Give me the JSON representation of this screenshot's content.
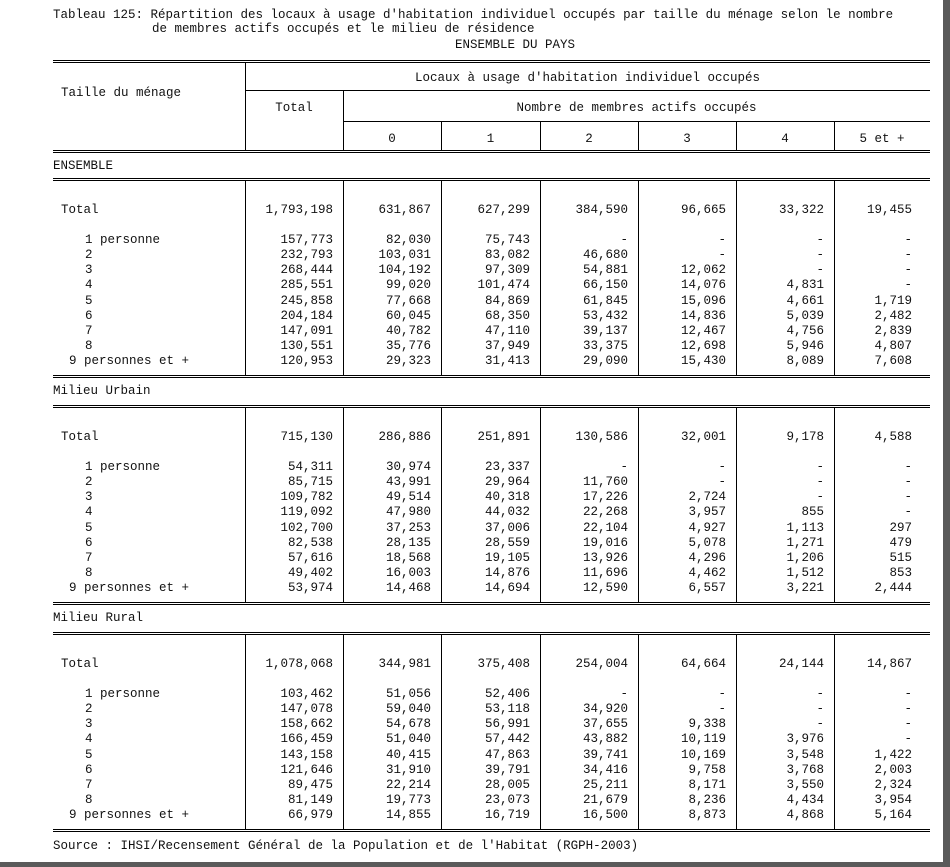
{
  "title": {
    "line1": "Tableau 125: Répartition des locaux à usage d'habitation individuel occupés par taille du ménage selon le nombre",
    "line2": "de membres actifs occupés et le milieu de résidence",
    "scope": "ENSEMBLE DU PAYS"
  },
  "header": {
    "row_label": "Taille du ménage",
    "group": "Locaux à usage d'habitation individuel occupés",
    "total": "Total",
    "subgroup": "Nombre de membres actifs occupés",
    "columns": [
      "0",
      "1",
      "2",
      "3",
      "4",
      "5 et +"
    ]
  },
  "sections": [
    {
      "name": "ENSEMBLE",
      "total": {
        "label": "Total",
        "values": [
          "1,793,198",
          "631,867",
          "627,299",
          "384,590",
          "96,665",
          "33,322",
          "19,455"
        ]
      },
      "rows": [
        {
          "label": "1 personne",
          "values": [
            "157,773",
            "82,030",
            "75,743",
            "-",
            "-",
            "-",
            "-"
          ]
        },
        {
          "label": "2",
          "values": [
            "232,793",
            "103,031",
            "83,082",
            "46,680",
            "-",
            "-",
            "-"
          ]
        },
        {
          "label": "3",
          "values": [
            "268,444",
            "104,192",
            "97,309",
            "54,881",
            "12,062",
            "-",
            "-"
          ]
        },
        {
          "label": "4",
          "values": [
            "285,551",
            "99,020",
            "101,474",
            "66,150",
            "14,076",
            "4,831",
            "-"
          ]
        },
        {
          "label": "5",
          "values": [
            "245,858",
            "77,668",
            "84,869",
            "61,845",
            "15,096",
            "4,661",
            "1,719"
          ]
        },
        {
          "label": "6",
          "values": [
            "204,184",
            "60,045",
            "68,350",
            "53,432",
            "14,836",
            "5,039",
            "2,482"
          ]
        },
        {
          "label": "7",
          "values": [
            "147,091",
            "40,782",
            "47,110",
            "39,137",
            "12,467",
            "4,756",
            "2,839"
          ]
        },
        {
          "label": "8",
          "values": [
            "130,551",
            "35,776",
            "37,949",
            "33,375",
            "12,698",
            "5,946",
            "4,807"
          ]
        },
        {
          "label": "9 personnes et +",
          "values": [
            "120,953",
            "29,323",
            "31,413",
            "29,090",
            "15,430",
            "8,089",
            "7,608"
          ]
        }
      ]
    },
    {
      "name": "Milieu Urbain",
      "total": {
        "label": "Total",
        "values": [
          "715,130",
          "286,886",
          "251,891",
          "130,586",
          "32,001",
          "9,178",
          "4,588"
        ]
      },
      "rows": [
        {
          "label": "1 personne",
          "values": [
            "54,311",
            "30,974",
            "23,337",
            "-",
            "-",
            "-",
            "-"
          ]
        },
        {
          "label": "2",
          "values": [
            "85,715",
            "43,991",
            "29,964",
            "11,760",
            "-",
            "-",
            "-"
          ]
        },
        {
          "label": "3",
          "values": [
            "109,782",
            "49,514",
            "40,318",
            "17,226",
            "2,724",
            "-",
            "-"
          ]
        },
        {
          "label": "4",
          "values": [
            "119,092",
            "47,980",
            "44,032",
            "22,268",
            "3,957",
            "855",
            "-"
          ]
        },
        {
          "label": "5",
          "values": [
            "102,700",
            "37,253",
            "37,006",
            "22,104",
            "4,927",
            "1,113",
            "297"
          ]
        },
        {
          "label": "6",
          "values": [
            "82,538",
            "28,135",
            "28,559",
            "19,016",
            "5,078",
            "1,271",
            "479"
          ]
        },
        {
          "label": "7",
          "values": [
            "57,616",
            "18,568",
            "19,105",
            "13,926",
            "4,296",
            "1,206",
            "515"
          ]
        },
        {
          "label": "8",
          "values": [
            "49,402",
            "16,003",
            "14,876",
            "11,696",
            "4,462",
            "1,512",
            "853"
          ]
        },
        {
          "label": "9 personnes et +",
          "values": [
            "53,974",
            "14,468",
            "14,694",
            "12,590",
            "6,557",
            "3,221",
            "2,444"
          ]
        }
      ]
    },
    {
      "name": "Milieu Rural",
      "total": {
        "label": "Total",
        "values": [
          "1,078,068",
          "344,981",
          "375,408",
          "254,004",
          "64,664",
          "24,144",
          "14,867"
        ]
      },
      "rows": [
        {
          "label": "1 personne",
          "values": [
            "103,462",
            "51,056",
            "52,406",
            "-",
            "-",
            "-",
            "-"
          ]
        },
        {
          "label": "2",
          "values": [
            "147,078",
            "59,040",
            "53,118",
            "34,920",
            "-",
            "-",
            "-"
          ]
        },
        {
          "label": "3",
          "values": [
            "158,662",
            "54,678",
            "56,991",
            "37,655",
            "9,338",
            "-",
            "-"
          ]
        },
        {
          "label": "4",
          "values": [
            "166,459",
            "51,040",
            "57,442",
            "43,882",
            "10,119",
            "3,976",
            "-"
          ]
        },
        {
          "label": "5",
          "values": [
            "143,158",
            "40,415",
            "47,863",
            "39,741",
            "10,169",
            "3,548",
            "1,422"
          ]
        },
        {
          "label": "6",
          "values": [
            "121,646",
            "31,910",
            "39,791",
            "34,416",
            "9,758",
            "3,768",
            "2,003"
          ]
        },
        {
          "label": "7",
          "values": [
            "89,475",
            "22,214",
            "28,005",
            "25,211",
            "8,171",
            "3,550",
            "2,324"
          ]
        },
        {
          "label": "8",
          "values": [
            "81,149",
            "19,773",
            "23,073",
            "21,679",
            "8,236",
            "4,434",
            "3,954"
          ]
        },
        {
          "label": "9 personnes et +",
          "values": [
            "66,979",
            "14,855",
            "16,719",
            "16,500",
            "8,873",
            "4,868",
            "5,164"
          ]
        }
      ]
    }
  ],
  "source": "Source : IHSI/Recensement Général de la Population et de l'Habitat (RGPH-2003)"
}
